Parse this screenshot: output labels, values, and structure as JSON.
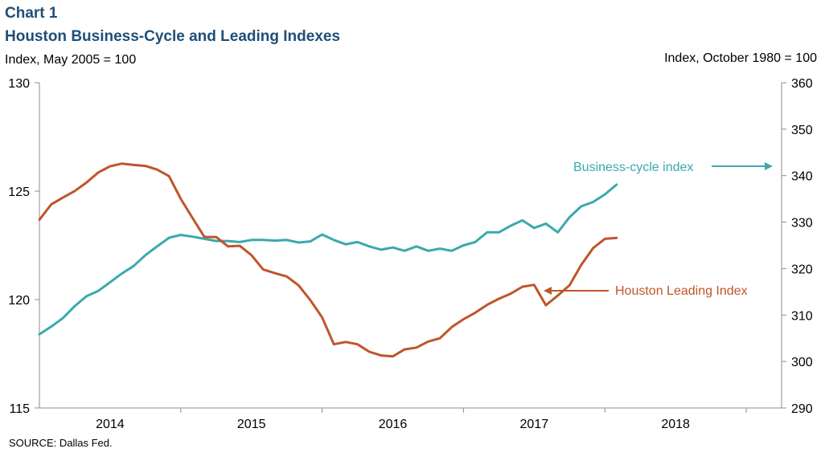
{
  "header": {
    "chart_label": "Chart 1",
    "title": "Houston Business-Cycle  and Leading Indexes",
    "left_axis_title": "Index,  May  2005  = 100",
    "right_axis_title": "Index,  October  1980 = 100"
  },
  "footer": {
    "source": "SOURCE:  Dallas Fed."
  },
  "chart_data": {
    "type": "line",
    "x_tick_labels": [
      "2014",
      "2015",
      "2016",
      "2017",
      "2018"
    ],
    "x_range": [
      2013.5,
      2018.75
    ],
    "y_left": {
      "ylim": [
        115,
        130
      ],
      "ticks": [
        115,
        120,
        125,
        130
      ]
    },
    "y_right": {
      "ylim": [
        290,
        360
      ],
      "ticks": [
        290,
        300,
        310,
        320,
        330,
        340,
        350,
        360
      ]
    },
    "grid": false,
    "series": [
      {
        "name": "Business-cycle index",
        "axis": "left",
        "color": "#3aa9ae",
        "x": [
          2013.5,
          2013.583,
          2013.667,
          2013.75,
          2013.833,
          2013.917,
          2014.0,
          2014.083,
          2014.167,
          2014.25,
          2014.333,
          2014.417,
          2014.5,
          2014.583,
          2014.667,
          2014.75,
          2014.833,
          2014.917,
          2015.0,
          2015.083,
          2015.167,
          2015.25,
          2015.333,
          2015.417,
          2015.5,
          2015.583,
          2015.667,
          2015.75,
          2015.833,
          2015.917,
          2016.0,
          2016.083,
          2016.167,
          2016.25,
          2016.333,
          2016.417,
          2016.5,
          2016.583,
          2016.667,
          2016.75,
          2016.833,
          2016.917,
          2017.0,
          2017.083,
          2017.167,
          2017.25,
          2017.333,
          2017.417,
          2017.5,
          2017.583
        ],
        "values": [
          118.4,
          118.75,
          119.15,
          119.7,
          120.15,
          120.4,
          120.8,
          121.2,
          121.55,
          122.05,
          122.45,
          122.85,
          122.98,
          122.9,
          122.8,
          122.7,
          122.7,
          122.65,
          122.75,
          122.75,
          122.72,
          122.75,
          122.63,
          122.68,
          123.0,
          122.75,
          122.55,
          122.65,
          122.45,
          122.3,
          122.4,
          122.25,
          122.45,
          122.25,
          122.35,
          122.25,
          122.5,
          122.65,
          123.1,
          123.1,
          123.4,
          123.65,
          123.3,
          123.5,
          123.1,
          123.8,
          124.3,
          124.5,
          124.85,
          125.3
        ]
      },
      {
        "name": "Houston Leading Index",
        "axis": "right",
        "color": "#c0552a",
        "x": [
          2013.5,
          2013.583,
          2013.667,
          2013.75,
          2013.833,
          2013.917,
          2014.0,
          2014.083,
          2014.167,
          2014.25,
          2014.333,
          2014.417,
          2014.5,
          2014.583,
          2014.667,
          2014.75,
          2014.833,
          2014.917,
          2015.0,
          2015.083,
          2015.167,
          2015.25,
          2015.333,
          2015.417,
          2015.5,
          2015.583,
          2015.667,
          2015.75,
          2015.833,
          2015.917,
          2016.0,
          2016.083,
          2016.167,
          2016.25,
          2016.333,
          2016.417,
          2016.5,
          2016.583,
          2016.667,
          2016.75,
          2016.833,
          2016.917,
          2017.0,
          2017.083,
          2017.167,
          2017.25,
          2017.333,
          2017.417,
          2017.5,
          2017.583
        ],
        "values": [
          330.5,
          333.8,
          335.3,
          336.7,
          338.5,
          340.7,
          342.0,
          342.6,
          342.3,
          342.1,
          341.3,
          339.9,
          335.0,
          330.9,
          326.8,
          326.8,
          324.8,
          324.9,
          322.9,
          319.8,
          319.0,
          318.3,
          316.4,
          313.2,
          309.5,
          303.7,
          304.2,
          303.7,
          302.1,
          301.3,
          301.1,
          302.6,
          303.0,
          304.3,
          305.0,
          307.4,
          309.1,
          310.5,
          312.2,
          313.5,
          314.6,
          316.1,
          316.5,
          312.1,
          314.2,
          316.4,
          320.8,
          324.4,
          326.4,
          326.6
        ]
      }
    ],
    "annotations": [
      {
        "text": "Business-cycle index",
        "color": "#3aa9ae",
        "arrow": "right"
      },
      {
        "text": "Houston Leading Index",
        "color": "#c0552a",
        "arrow": "left"
      }
    ]
  }
}
